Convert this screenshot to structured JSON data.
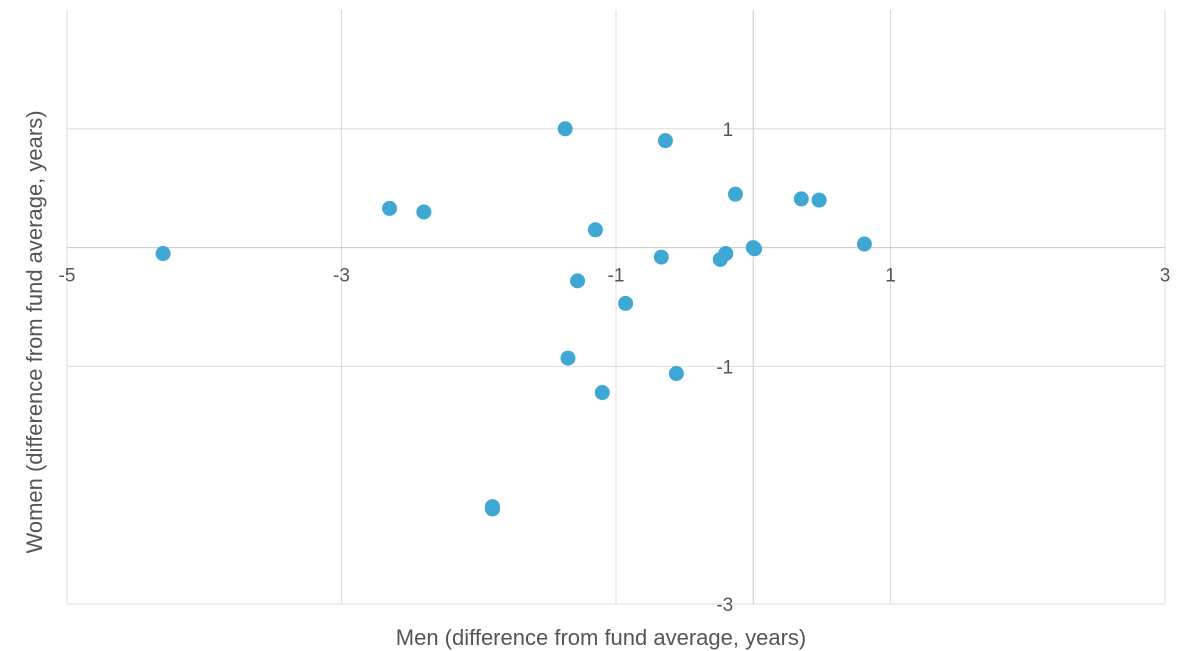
{
  "chart_data": {
    "type": "scatter",
    "title": "",
    "xlabel": "Men (difference from fund average, years)",
    "ylabel": "Women (difference from fund average, years)",
    "xlim": [
      -5,
      3
    ],
    "ylim": [
      -3,
      2
    ],
    "x_ticks": [
      -5,
      -3,
      -1,
      1,
      3
    ],
    "y_ticks": [
      1,
      -1,
      -3
    ],
    "x_tick_labels": [
      "-5",
      "-3",
      "-1",
      "1",
      "3"
    ],
    "y_tick_labels": [
      "1",
      "-1",
      "-3"
    ],
    "grid": true,
    "legend": "none",
    "colors": {
      "marker": "#3fa7d3",
      "grid": "#dcdcdc",
      "axis_line": "#c8c8c8",
      "text": "#555555"
    },
    "series": [
      {
        "points": [
          {
            "x": -4.3,
            "y": -0.05
          },
          {
            "x": -2.65,
            "y": 0.33
          },
          {
            "x": -2.4,
            "y": 0.3
          },
          {
            "x": -1.9,
            "y": -2.18
          },
          {
            "x": -1.9,
            "y": -2.2
          },
          {
            "x": -1.37,
            "y": 1.0
          },
          {
            "x": -1.35,
            "y": -0.93
          },
          {
            "x": -1.28,
            "y": -0.28
          },
          {
            "x": -1.15,
            "y": 0.15
          },
          {
            "x": -1.1,
            "y": -1.22
          },
          {
            "x": -0.93,
            "y": -0.47
          },
          {
            "x": -0.67,
            "y": -0.08
          },
          {
            "x": -0.64,
            "y": 0.9
          },
          {
            "x": -0.56,
            "y": -1.06
          },
          {
            "x": -0.24,
            "y": -0.1
          },
          {
            "x": -0.2,
            "y": -0.05
          },
          {
            "x": -0.13,
            "y": 0.45
          },
          {
            "x": 0.0,
            "y": 0.0
          },
          {
            "x": 0.01,
            "y": -0.01
          },
          {
            "x": 0.35,
            "y": 0.41
          },
          {
            "x": 0.48,
            "y": 0.4
          },
          {
            "x": 0.81,
            "y": 0.03
          }
        ]
      }
    ]
  }
}
